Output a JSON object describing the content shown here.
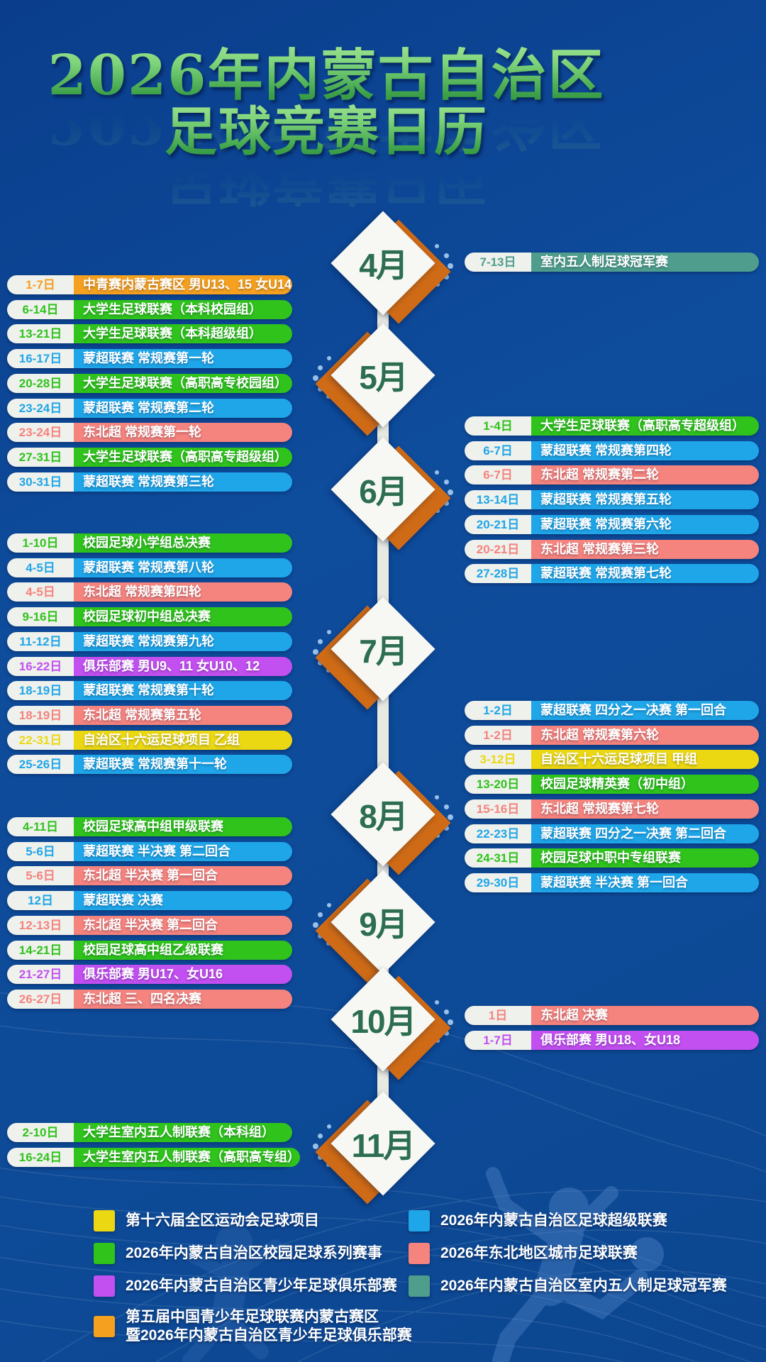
{
  "title": {
    "line1": "2026年内蒙古自治区",
    "line2": "足球竞赛日历"
  },
  "categories": {
    "games16": {
      "color": "#ecd812"
    },
    "campus": {
      "color": "#2fc31c"
    },
    "club": {
      "color": "#c24ff0"
    },
    "cnyouth": {
      "color": "#f5a01f"
    },
    "mengchao": {
      "color": "#1fa6e9"
    },
    "dongbei": {
      "color": "#f5837e"
    },
    "futsal": {
      "color": "#4f9e8d"
    }
  },
  "timeline": [
    {
      "month": "4月",
      "events": [
        {
          "date": "7-13日",
          "title": "室内五人制足球冠军赛",
          "category": "futsal"
        }
      ]
    },
    {
      "month": "5月",
      "events": [
        {
          "date": "1-7日",
          "title": "中青赛内蒙古赛区 男U13、15 女U14",
          "category": "cnyouth"
        },
        {
          "date": "6-14日",
          "title": "大学生足球联赛（本科校园组）",
          "category": "campus"
        },
        {
          "date": "13-21日",
          "title": "大学生足球联赛（本科超级组）",
          "category": "campus"
        },
        {
          "date": "16-17日",
          "title": "蒙超联赛 常规赛第一轮",
          "category": "mengchao"
        },
        {
          "date": "20-28日",
          "title": "大学生足球联赛（高职高专校园组）",
          "category": "campus"
        },
        {
          "date": "23-24日",
          "title": "蒙超联赛 常规赛第二轮",
          "category": "mengchao"
        },
        {
          "date": "23-24日",
          "title": "东北超 常规赛第一轮",
          "category": "dongbei"
        },
        {
          "date": "27-31日",
          "title": "大学生足球联赛（高职高专超级组）",
          "category": "campus"
        },
        {
          "date": "30-31日",
          "title": "蒙超联赛 常规赛第三轮",
          "category": "mengchao"
        }
      ]
    },
    {
      "month": "6月",
      "events": [
        {
          "date": "1-4日",
          "title": "大学生足球联赛（高职高专超级组）",
          "category": "campus"
        },
        {
          "date": "6-7日",
          "title": "蒙超联赛 常规赛第四轮",
          "category": "mengchao"
        },
        {
          "date": "6-7日",
          "title": "东北超 常规赛第二轮",
          "category": "dongbei"
        },
        {
          "date": "13-14日",
          "title": "蒙超联赛 常规赛第五轮",
          "category": "mengchao"
        },
        {
          "date": "20-21日",
          "title": "蒙超联赛 常规赛第六轮",
          "category": "mengchao"
        },
        {
          "date": "20-21日",
          "title": "东北超 常规赛第三轮",
          "category": "dongbei"
        },
        {
          "date": "27-28日",
          "title": "蒙超联赛 常规赛第七轮",
          "category": "mengchao"
        }
      ]
    },
    {
      "month": "7月",
      "events": [
        {
          "date": "1-10日",
          "title": "校园足球小学组总决赛",
          "category": "campus"
        },
        {
          "date": "4-5日",
          "title": "蒙超联赛 常规赛第八轮",
          "category": "mengchao"
        },
        {
          "date": "4-5日",
          "title": "东北超 常规赛第四轮",
          "category": "dongbei"
        },
        {
          "date": "9-16日",
          "title": "校园足球初中组总决赛",
          "category": "campus"
        },
        {
          "date": "11-12日",
          "title": "蒙超联赛 常规赛第九轮",
          "category": "mengchao"
        },
        {
          "date": "16-22日",
          "title": "俱乐部赛 男U9、11 女U10、12",
          "category": "club"
        },
        {
          "date": "18-19日",
          "title": "蒙超联赛 常规赛第十轮",
          "category": "mengchao"
        },
        {
          "date": "18-19日",
          "title": "东北超 常规赛第五轮",
          "category": "dongbei"
        },
        {
          "date": "22-31日",
          "title": "自治区十六运足球项目 乙组",
          "category": "games16"
        },
        {
          "date": "25-26日",
          "title": "蒙超联赛 常规赛第十一轮",
          "category": "mengchao"
        }
      ]
    },
    {
      "month": "8月",
      "events": [
        {
          "date": "1-2日",
          "title": "蒙超联赛 四分之一决赛 第一回合",
          "category": "mengchao"
        },
        {
          "date": "1-2日",
          "title": "东北超 常规赛第六轮",
          "category": "dongbei"
        },
        {
          "date": "3-12日",
          "title": "自治区十六运足球项目 甲组",
          "category": "games16"
        },
        {
          "date": "13-20日",
          "title": "校园足球精英赛（初中组）",
          "category": "campus"
        },
        {
          "date": "15-16日",
          "title": "东北超 常规赛第七轮",
          "category": "dongbei"
        },
        {
          "date": "22-23日",
          "title": "蒙超联赛 四分之一决赛 第二回合",
          "category": "mengchao"
        },
        {
          "date": "24-31日",
          "title": "校园足球中职中专组联赛",
          "category": "campus"
        },
        {
          "date": "29-30日",
          "title": "蒙超联赛 半决赛 第一回合",
          "category": "mengchao"
        }
      ]
    },
    {
      "month": "9月",
      "events": [
        {
          "date": "4-11日",
          "title": "校园足球高中组甲级联赛",
          "category": "campus"
        },
        {
          "date": "5-6日",
          "title": "蒙超联赛 半决赛 第二回合",
          "category": "mengchao"
        },
        {
          "date": "5-6日",
          "title": "东北超 半决赛 第一回合",
          "category": "dongbei"
        },
        {
          "date": "12日",
          "title": "蒙超联赛 决赛",
          "category": "mengchao"
        },
        {
          "date": "12-13日",
          "title": "东北超 半决赛 第二回合",
          "category": "dongbei"
        },
        {
          "date": "14-21日",
          "title": "校园足球高中组乙级联赛",
          "category": "campus"
        },
        {
          "date": "21-27日",
          "title": "俱乐部赛 男U17、女U16",
          "category": "club"
        },
        {
          "date": "26-27日",
          "title": "东北超 三、四名决赛",
          "category": "dongbei"
        }
      ]
    },
    {
      "month": "10月",
      "events": [
        {
          "date": "1日",
          "title": "东北超 决赛",
          "category": "dongbei"
        },
        {
          "date": "1-7日",
          "title": "俱乐部赛 男U18、女U18",
          "category": "club"
        }
      ]
    },
    {
      "month": "11月",
      "events": [
        {
          "date": "2-10日",
          "title": "大学生室内五人制联赛（本科组）",
          "category": "campus"
        },
        {
          "date": "16-24日",
          "title": "大学生室内五人制联赛（高职高专组）",
          "category": "campus"
        }
      ]
    }
  ],
  "legend": {
    "columns": [
      [
        {
          "category": "games16",
          "label": "第十六届全区运动会足球项目"
        },
        {
          "category": "campus",
          "label": "2026年内蒙古自治区校园足球系列赛事"
        },
        {
          "category": "club",
          "label": "2026年内蒙古自治区青少年足球俱乐部赛"
        },
        {
          "category": "cnyouth",
          "label": "第五届中国青少年足球联赛内蒙古赛区\n暨2026年内蒙古自治区青少年足球俱乐部赛"
        }
      ],
      [
        {
          "category": "mengchao",
          "label": "2026年内蒙古自治区足球超级联赛"
        },
        {
          "category": "dongbei",
          "label": "2026年东北地区城市足球联赛"
        },
        {
          "category": "futsal",
          "label": "2026年内蒙古自治区室内五人制足球冠军赛"
        }
      ]
    ]
  }
}
